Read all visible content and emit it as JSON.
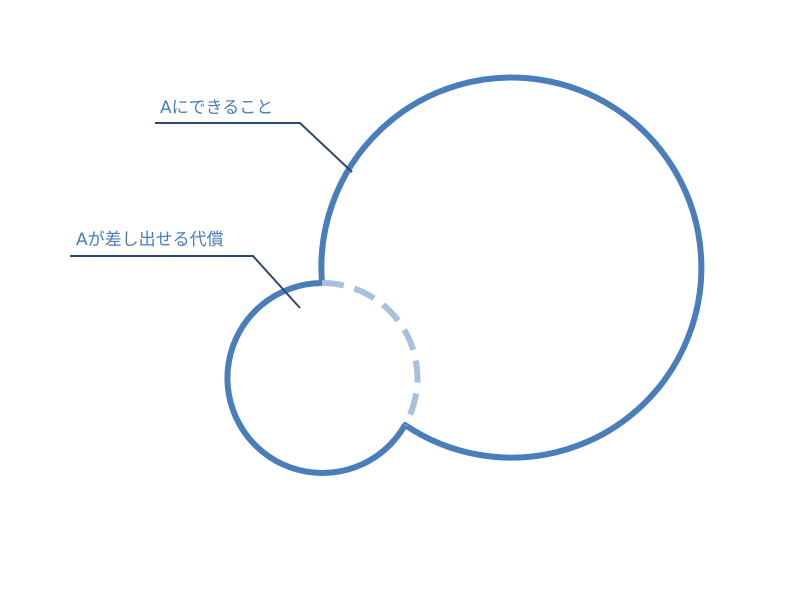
{
  "labels": {
    "capability": "Aにできること",
    "cost": "Aが差し出せる代償"
  },
  "colors": {
    "circle_stroke": "#4a7ebb",
    "dashed_overlap": "#a8c0e0",
    "leader_line": "#2c4a70",
    "label_text": "#4a7ebb"
  }
}
